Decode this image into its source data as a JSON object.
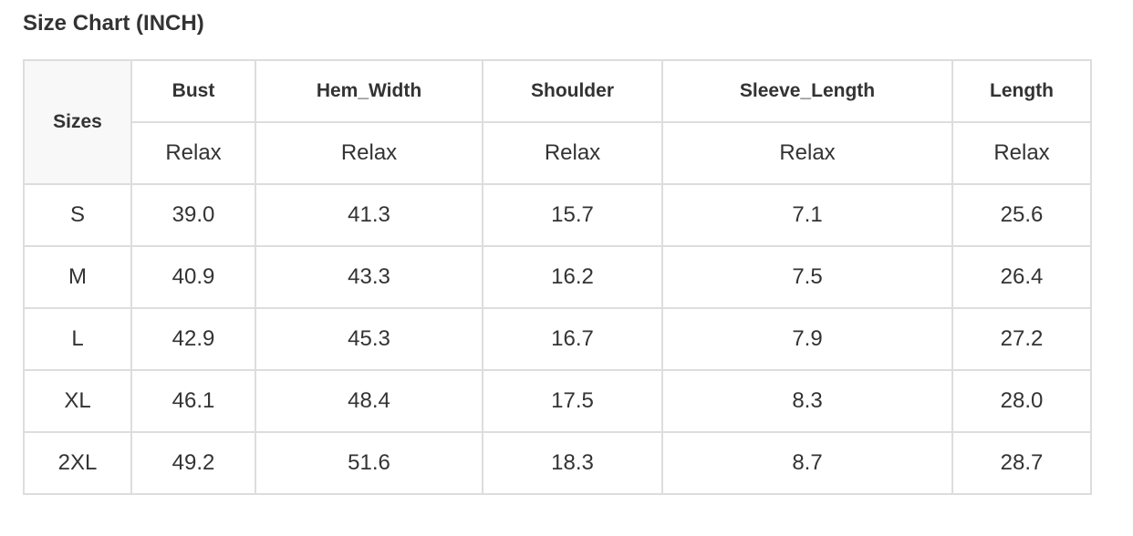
{
  "title": "Size Chart (INCH)",
  "table": {
    "size_header": "Sizes",
    "columns": [
      "Bust",
      "Hem_Width",
      "Shoulder",
      "Sleeve_Length",
      "Length"
    ],
    "subheaders": [
      "Relax",
      "Relax",
      "Relax",
      "Relax",
      "Relax"
    ],
    "rows": [
      {
        "size": "S",
        "values": [
          "39.0",
          "41.3",
          "15.7",
          "7.1",
          "25.6"
        ]
      },
      {
        "size": "M",
        "values": [
          "40.9",
          "43.3",
          "16.2",
          "7.5",
          "26.4"
        ]
      },
      {
        "size": "L",
        "values": [
          "42.9",
          "45.3",
          "16.7",
          "7.9",
          "27.2"
        ]
      },
      {
        "size": "XL",
        "values": [
          "46.1",
          "48.4",
          "17.5",
          "8.3",
          "28.0"
        ]
      },
      {
        "size": "2XL",
        "values": [
          "49.2",
          "51.6",
          "18.3",
          "8.7",
          "28.7"
        ]
      }
    ]
  }
}
